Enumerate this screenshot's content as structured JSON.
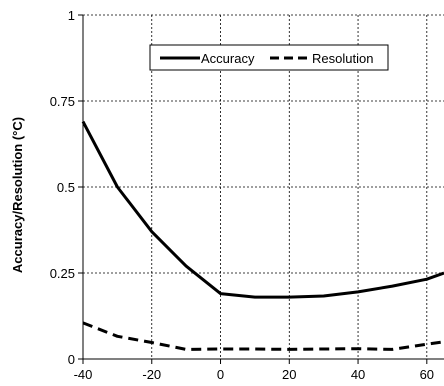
{
  "chart_data": {
    "type": "line",
    "title": "",
    "xlabel": "",
    "ylabel": "Accuracy/Resolution  (°C)",
    "xlim": [
      -40,
      65
    ],
    "ylim": [
      0,
      1
    ],
    "x_ticks": [
      -40,
      -20,
      0,
      20,
      40,
      60
    ],
    "y_ticks": [
      0,
      0.25,
      0.5,
      0.75,
      1
    ],
    "x_tick_labels": [
      "-40",
      "-20",
      "0",
      "20",
      "40",
      "60"
    ],
    "y_tick_labels": [
      "0",
      "0.25",
      "0.5",
      "0.75",
      "1"
    ],
    "grid": true,
    "legend_position": "top-center",
    "series": [
      {
        "name": "Accuracy",
        "style": "solid",
        "color": "#000000",
        "x": [
          -40,
          -30,
          -20,
          -10,
          0,
          10,
          20,
          30,
          40,
          50,
          60,
          65
        ],
        "y": [
          0.69,
          0.5,
          0.37,
          0.27,
          0.19,
          0.18,
          0.18,
          0.183,
          0.195,
          0.212,
          0.232,
          0.25
        ]
      },
      {
        "name": "Resolution",
        "style": "dashed",
        "color": "#000000",
        "x": [
          -40,
          -30,
          -20,
          -10,
          0,
          10,
          20,
          30,
          40,
          50,
          60,
          65
        ],
        "y": [
          0.105,
          0.066,
          0.048,
          0.028,
          0.029,
          0.029,
          0.028,
          0.029,
          0.03,
          0.028,
          0.043,
          0.05
        ]
      }
    ]
  }
}
